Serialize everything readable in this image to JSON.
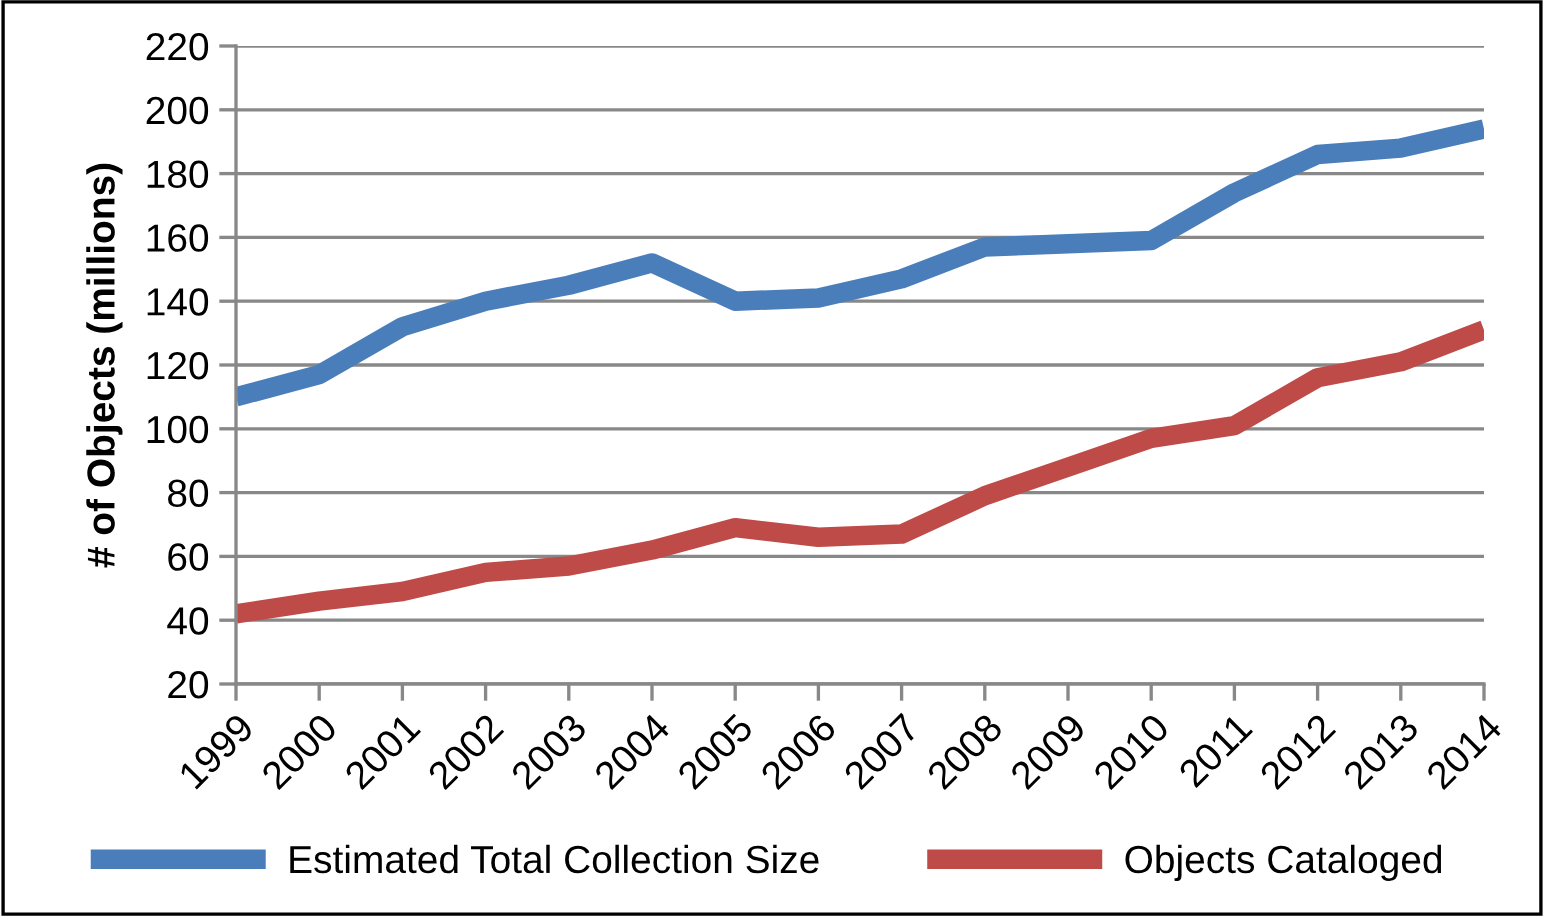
{
  "chart_data": {
    "type": "line",
    "ylabel": "# of Objects (millions)",
    "categories": [
      "1999",
      "2000",
      "2001",
      "2002",
      "2003",
      "2004",
      "2005",
      "2006",
      "2007",
      "2008",
      "2009",
      "2010",
      "2011",
      "2012",
      "2013",
      "2014"
    ],
    "series": [
      {
        "name": "Estimated Total Collection Size",
        "color": "#4a7ebb",
        "values": [
          110,
          117,
          132,
          140,
          145,
          152,
          140,
          141,
          147,
          157,
          158,
          159,
          174,
          186,
          188,
          194
        ]
      },
      {
        "name": "Objects Cataloged",
        "color": "#be4b48",
        "values": [
          42,
          46,
          49,
          55,
          57,
          62,
          69,
          66,
          67,
          79,
          88,
          97,
          101,
          116,
          121,
          131
        ]
      }
    ],
    "ylim": [
      20,
      220
    ],
    "yticks": [
      20,
      40,
      60,
      80,
      100,
      120,
      140,
      160,
      180,
      200,
      220
    ],
    "grid": "y",
    "legend": "bottom",
    "marker": "none",
    "line_style": "solid"
  }
}
